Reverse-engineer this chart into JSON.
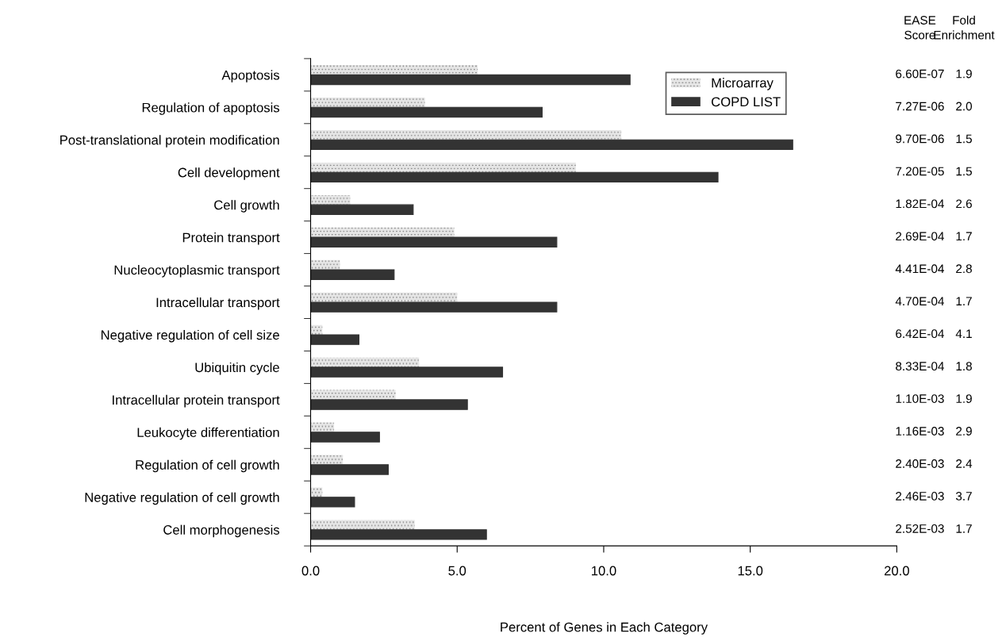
{
  "chart_data": {
    "type": "bar",
    "orientation": "horizontal",
    "xlabel": "Percent of Genes in Each Category",
    "categories": [
      "Apoptosis",
      "Regulation of apoptosis",
      "Post-translational protein modification",
      "Cell development",
      "Cell growth",
      "Protein transport",
      "Nucleocytoplasmic transport",
      "Intracellular transport",
      "Negative regulation of cell size",
      "Ubiquitin cycle",
      "Intracellular protein transport",
      "Leukocyte differentiation",
      "Regulation of cell growth",
      "Negative regulation of cell growth",
      "Cell morphogenesis"
    ],
    "series": [
      {
        "name": "Microarray",
        "color": "#e6e6e6",
        "values": [
          5.7,
          3.9,
          10.6,
          9.05,
          1.35,
          4.9,
          1.0,
          5.0,
          0.4,
          3.7,
          2.9,
          0.8,
          1.1,
          0.4,
          3.55
        ]
      },
      {
        "name": "COPD LIST",
        "color": "#333333",
        "values": [
          10.9,
          7.9,
          16.45,
          13.9,
          3.5,
          8.4,
          2.85,
          8.4,
          1.65,
          6.55,
          5.35,
          2.35,
          2.65,
          1.5,
          6.0
        ]
      }
    ],
    "xlim": [
      0,
      20
    ],
    "xticks": [
      {
        "value": 0,
        "label": "0.0"
      },
      {
        "value": 5,
        "label": "5.0"
      },
      {
        "value": 10,
        "label": "10.0"
      },
      {
        "value": 15,
        "label": "15.0"
      },
      {
        "value": 20,
        "label": "20.0"
      }
    ],
    "legend": "top right",
    "grid": false,
    "annotations": [
      "EASE\nScore",
      "6.60E-07",
      "7.27E-06",
      "9.70E-06",
      "7.20E-05",
      "1.82E-04",
      "2.69E-04",
      "4.41E-04",
      "4.70E-04",
      "6.42E-04",
      "8.33E-04",
      "1.10E-03",
      "1.16E-03",
      "2.40E-03",
      "2.46E-03",
      "2.52E-03",
      "Fold\nEnrichment",
      "1.9",
      "2.0",
      "1.5",
      "1.5",
      "2.6",
      "1.7",
      "2.8",
      "1.7",
      "4.1",
      "1.8",
      "1.9",
      "2.9",
      "2.4",
      "3.7",
      "1.7"
    ]
  }
}
